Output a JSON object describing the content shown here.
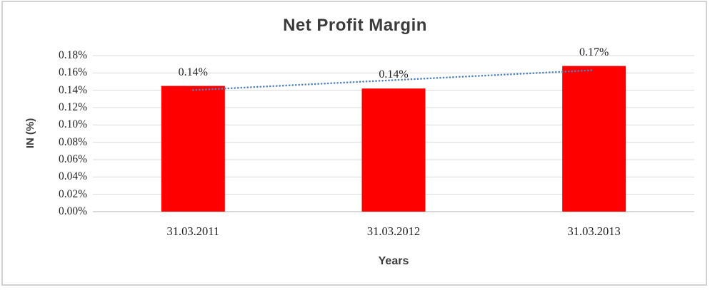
{
  "chart_data": {
    "type": "bar",
    "title": "Net Profit Margin",
    "xlabel": "Years",
    "ylabel": "IN (%)",
    "categories": [
      "31.03.2011",
      "31.03.2012",
      "31.03.2013"
    ],
    "values": [
      0.145,
      0.142,
      0.168
    ],
    "data_labels": [
      "0.14%",
      "0.14%",
      "0.17%"
    ],
    "y_ticks": [
      "0.18%",
      "0.16%",
      "0.14%",
      "0.12%",
      "0.10%",
      "0.08%",
      "0.06%",
      "0.04%",
      "0.02%",
      "0.00%"
    ],
    "ylim": [
      0,
      0.18
    ],
    "y_tick_step": 0.02,
    "grid": true,
    "legend": "none",
    "trendline": {
      "type": "linear",
      "style": "dotted"
    }
  },
  "colors": {
    "bar": "#FF0000",
    "trendline": "#4F81BD",
    "gridline": "#D9D9D9",
    "axis_line": "#C0C0C0",
    "label_text": "#1F1F1F",
    "title_text": "#3B3B3B",
    "frame_border": "#D2D2D2",
    "background": "#FFFFFF"
  }
}
